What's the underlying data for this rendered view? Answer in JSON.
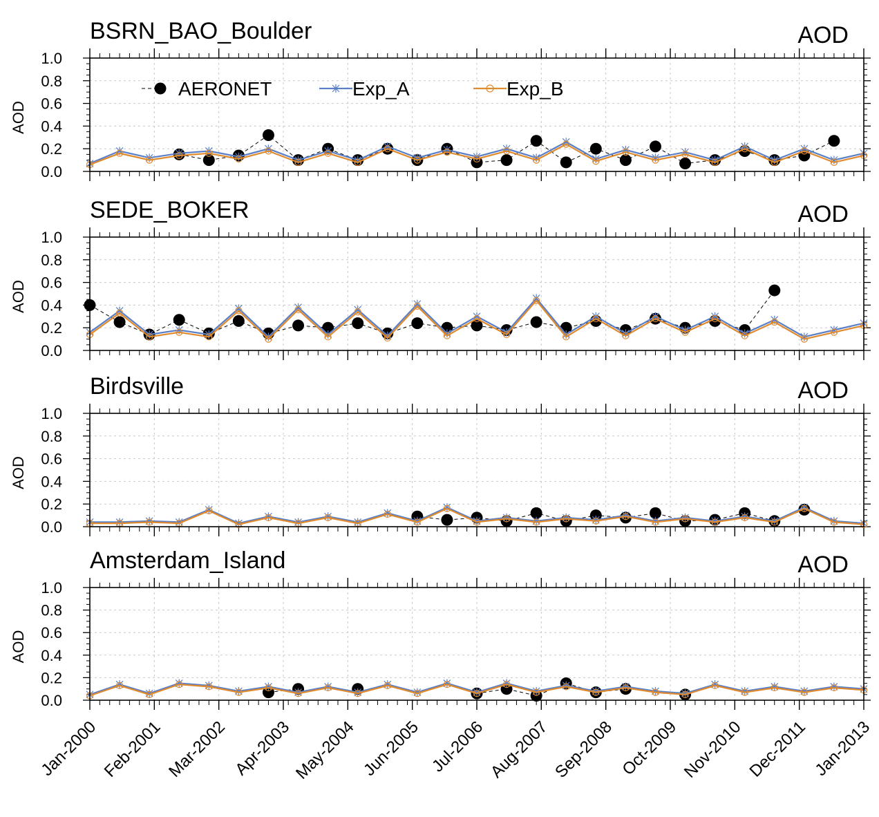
{
  "figure": {
    "x_tick_labels": [
      "Jan-2000",
      "Feb-2001",
      "Mar-2002",
      "Apr-2003",
      "May-2004",
      "Jun-2005",
      "Jul-2006",
      "Aug-2007",
      "Sep-2008",
      "Oct-2009",
      "Nov-2010",
      "Dec-2011",
      "Jan-2013"
    ],
    "legend": {
      "observed": "AERONET",
      "exp_a": "Exp_A",
      "exp_b": "Exp_B",
      "location": "top-left"
    }
  },
  "colors": {
    "observed": "#000000",
    "exp_a": "#5a7fc6",
    "exp_b": "#e08a2e",
    "grid": "#c8c8c8"
  },
  "chart_data": [
    {
      "type": "line",
      "title": "BSRN_BAO_Boulder",
      "right_label": "AOD",
      "ylabel": "AOD",
      "ylim": [
        0,
        1.0
      ],
      "yticks": [
        "0.0",
        "0.2",
        "0.4",
        "0.6",
        "0.8",
        "1.0"
      ],
      "xlim": [
        "2000-01",
        "2013-01"
      ],
      "grid": true,
      "x": [
        "2000-01",
        "2000-07",
        "2001-01",
        "2001-07",
        "2002-01",
        "2002-07",
        "2003-01",
        "2003-07",
        "2004-01",
        "2004-07",
        "2005-01",
        "2005-07",
        "2006-01",
        "2006-07",
        "2007-01",
        "2007-07",
        "2008-01",
        "2008-07",
        "2009-01",
        "2009-07",
        "2010-01",
        "2010-07",
        "2011-01",
        "2011-07",
        "2012-01",
        "2012-07",
        "2013-01"
      ],
      "series": [
        {
          "name": "AERONET",
          "values": [
            null,
            null,
            null,
            0.15,
            0.1,
            0.14,
            0.32,
            0.1,
            0.2,
            0.1,
            0.2,
            0.1,
            0.2,
            0.08,
            0.1,
            0.27,
            0.08,
            0.2,
            0.1,
            0.22,
            0.07,
            0.1,
            0.18,
            0.1,
            0.14,
            0.27,
            null
          ]
        },
        {
          "name": "Exp_A",
          "values": [
            0.07,
            0.18,
            0.12,
            0.16,
            0.18,
            0.13,
            0.2,
            0.1,
            0.18,
            0.1,
            0.22,
            0.12,
            0.19,
            0.13,
            0.2,
            0.12,
            0.26,
            0.11,
            0.19,
            0.12,
            0.17,
            0.1,
            0.22,
            0.1,
            0.2,
            0.1,
            0.16
          ]
        },
        {
          "name": "Exp_B",
          "values": [
            0.06,
            0.16,
            0.1,
            0.14,
            0.16,
            0.11,
            0.18,
            0.08,
            0.16,
            0.08,
            0.2,
            0.1,
            0.17,
            0.11,
            0.18,
            0.1,
            0.24,
            0.09,
            0.17,
            0.1,
            0.15,
            0.08,
            0.2,
            0.08,
            0.18,
            0.08,
            0.14
          ]
        }
      ]
    },
    {
      "type": "line",
      "title": "SEDE_BOKER",
      "right_label": "AOD",
      "ylabel": "AOD",
      "ylim": [
        0,
        1.0
      ],
      "yticks": [
        "0.0",
        "0.2",
        "0.4",
        "0.6",
        "0.8",
        "1.0"
      ],
      "xlim": [
        "2000-01",
        "2013-01"
      ],
      "grid": true,
      "x": [
        "2000-01",
        "2000-07",
        "2001-01",
        "2001-07",
        "2002-01",
        "2002-07",
        "2003-01",
        "2003-07",
        "2004-01",
        "2004-07",
        "2005-01",
        "2005-07",
        "2006-01",
        "2006-07",
        "2007-01",
        "2007-07",
        "2008-01",
        "2008-07",
        "2009-01",
        "2009-07",
        "2010-01",
        "2010-07",
        "2011-01",
        "2011-07",
        "2012-01",
        "2012-07",
        "2013-01"
      ],
      "series": [
        {
          "name": "AERONET",
          "values": [
            0.4,
            0.25,
            0.14,
            0.27,
            0.15,
            0.26,
            0.15,
            0.22,
            0.2,
            0.24,
            0.15,
            0.24,
            0.2,
            0.22,
            0.18,
            0.25,
            0.2,
            0.26,
            0.18,
            0.28,
            0.2,
            0.26,
            0.18,
            0.53,
            null,
            null,
            null
          ]
        },
        {
          "name": "Exp_A",
          "values": [
            0.16,
            0.35,
            0.14,
            0.18,
            0.14,
            0.37,
            0.12,
            0.38,
            0.14,
            0.36,
            0.13,
            0.41,
            0.15,
            0.3,
            0.16,
            0.46,
            0.14,
            0.3,
            0.15,
            0.3,
            0.18,
            0.3,
            0.15,
            0.27,
            0.12,
            0.18,
            0.24
          ]
        },
        {
          "name": "Exp_B",
          "values": [
            0.14,
            0.33,
            0.12,
            0.16,
            0.12,
            0.35,
            0.1,
            0.36,
            0.12,
            0.34,
            0.11,
            0.39,
            0.13,
            0.28,
            0.14,
            0.44,
            0.12,
            0.28,
            0.13,
            0.28,
            0.16,
            0.28,
            0.13,
            0.25,
            0.1,
            0.16,
            0.22
          ]
        }
      ]
    },
    {
      "type": "line",
      "title": "Birdsville",
      "right_label": "AOD",
      "ylabel": "AOD",
      "ylim": [
        0,
        1.0
      ],
      "yticks": [
        "0.0",
        "0.2",
        "0.4",
        "0.6",
        "0.8",
        "1.0"
      ],
      "xlim": [
        "2000-01",
        "2013-01"
      ],
      "grid": true,
      "x": [
        "2000-01",
        "2000-07",
        "2001-01",
        "2001-07",
        "2002-01",
        "2002-07",
        "2003-01",
        "2003-07",
        "2004-01",
        "2004-07",
        "2005-01",
        "2005-07",
        "2006-01",
        "2006-07",
        "2007-01",
        "2007-07",
        "2008-01",
        "2008-07",
        "2009-01",
        "2009-07",
        "2010-01",
        "2010-07",
        "2011-01",
        "2011-07",
        "2012-01",
        "2012-07",
        "2013-01"
      ],
      "series": [
        {
          "name": "AERONET",
          "values": [
            null,
            null,
            null,
            null,
            null,
            null,
            null,
            null,
            null,
            null,
            null,
            0.09,
            0.06,
            0.08,
            0.05,
            0.12,
            0.05,
            0.1,
            0.08,
            0.12,
            0.05,
            0.06,
            0.12,
            0.05,
            0.15,
            null,
            null
          ]
        },
        {
          "name": "Exp_A",
          "values": [
            0.04,
            0.04,
            0.05,
            0.04,
            0.15,
            0.03,
            0.09,
            0.04,
            0.09,
            0.04,
            0.12,
            0.05,
            0.17,
            0.05,
            0.08,
            0.05,
            0.08,
            0.06,
            0.1,
            0.05,
            0.08,
            0.05,
            0.09,
            0.05,
            0.17,
            0.05,
            0.03
          ]
        },
        {
          "name": "Exp_B",
          "values": [
            0.03,
            0.03,
            0.04,
            0.03,
            0.14,
            0.02,
            0.08,
            0.03,
            0.08,
            0.03,
            0.11,
            0.04,
            0.16,
            0.04,
            0.07,
            0.04,
            0.07,
            0.05,
            0.09,
            0.04,
            0.07,
            0.04,
            0.08,
            0.04,
            0.16,
            0.04,
            0.02
          ]
        }
      ]
    },
    {
      "type": "line",
      "title": "Amsterdam_Island",
      "right_label": "AOD",
      "ylabel": "AOD",
      "ylim": [
        0,
        1.0
      ],
      "yticks": [
        "0.0",
        "0.2",
        "0.4",
        "0.6",
        "0.8",
        "1.0"
      ],
      "xlim": [
        "2000-01",
        "2013-01"
      ],
      "grid": true,
      "x": [
        "2000-01",
        "2000-07",
        "2001-01",
        "2001-07",
        "2002-01",
        "2002-07",
        "2003-01",
        "2003-07",
        "2004-01",
        "2004-07",
        "2005-01",
        "2005-07",
        "2006-01",
        "2006-07",
        "2007-01",
        "2007-07",
        "2008-01",
        "2008-07",
        "2009-01",
        "2009-07",
        "2010-01",
        "2010-07",
        "2011-01",
        "2011-07",
        "2012-01",
        "2012-07",
        "2013-01"
      ],
      "series": [
        {
          "name": "AERONET",
          "values": [
            null,
            null,
            null,
            null,
            null,
            null,
            0.07,
            0.1,
            null,
            0.1,
            null,
            null,
            null,
            0.06,
            0.1,
            0.04,
            0.15,
            0.07,
            0.1,
            null,
            0.05,
            null,
            null,
            null,
            null,
            null,
            null
          ]
        },
        {
          "name": "Exp_A",
          "values": [
            0.05,
            0.14,
            0.06,
            0.15,
            0.13,
            0.08,
            0.12,
            0.07,
            0.12,
            0.07,
            0.14,
            0.07,
            0.15,
            0.07,
            0.15,
            0.08,
            0.13,
            0.08,
            0.12,
            0.08,
            0.06,
            0.14,
            0.08,
            0.12,
            0.08,
            0.12,
            0.1
          ]
        },
        {
          "name": "Exp_B",
          "values": [
            0.04,
            0.13,
            0.05,
            0.14,
            0.12,
            0.07,
            0.11,
            0.06,
            0.11,
            0.06,
            0.13,
            0.06,
            0.14,
            0.06,
            0.14,
            0.07,
            0.12,
            0.07,
            0.11,
            0.07,
            0.05,
            0.13,
            0.07,
            0.11,
            0.07,
            0.11,
            0.09
          ]
        }
      ]
    }
  ]
}
